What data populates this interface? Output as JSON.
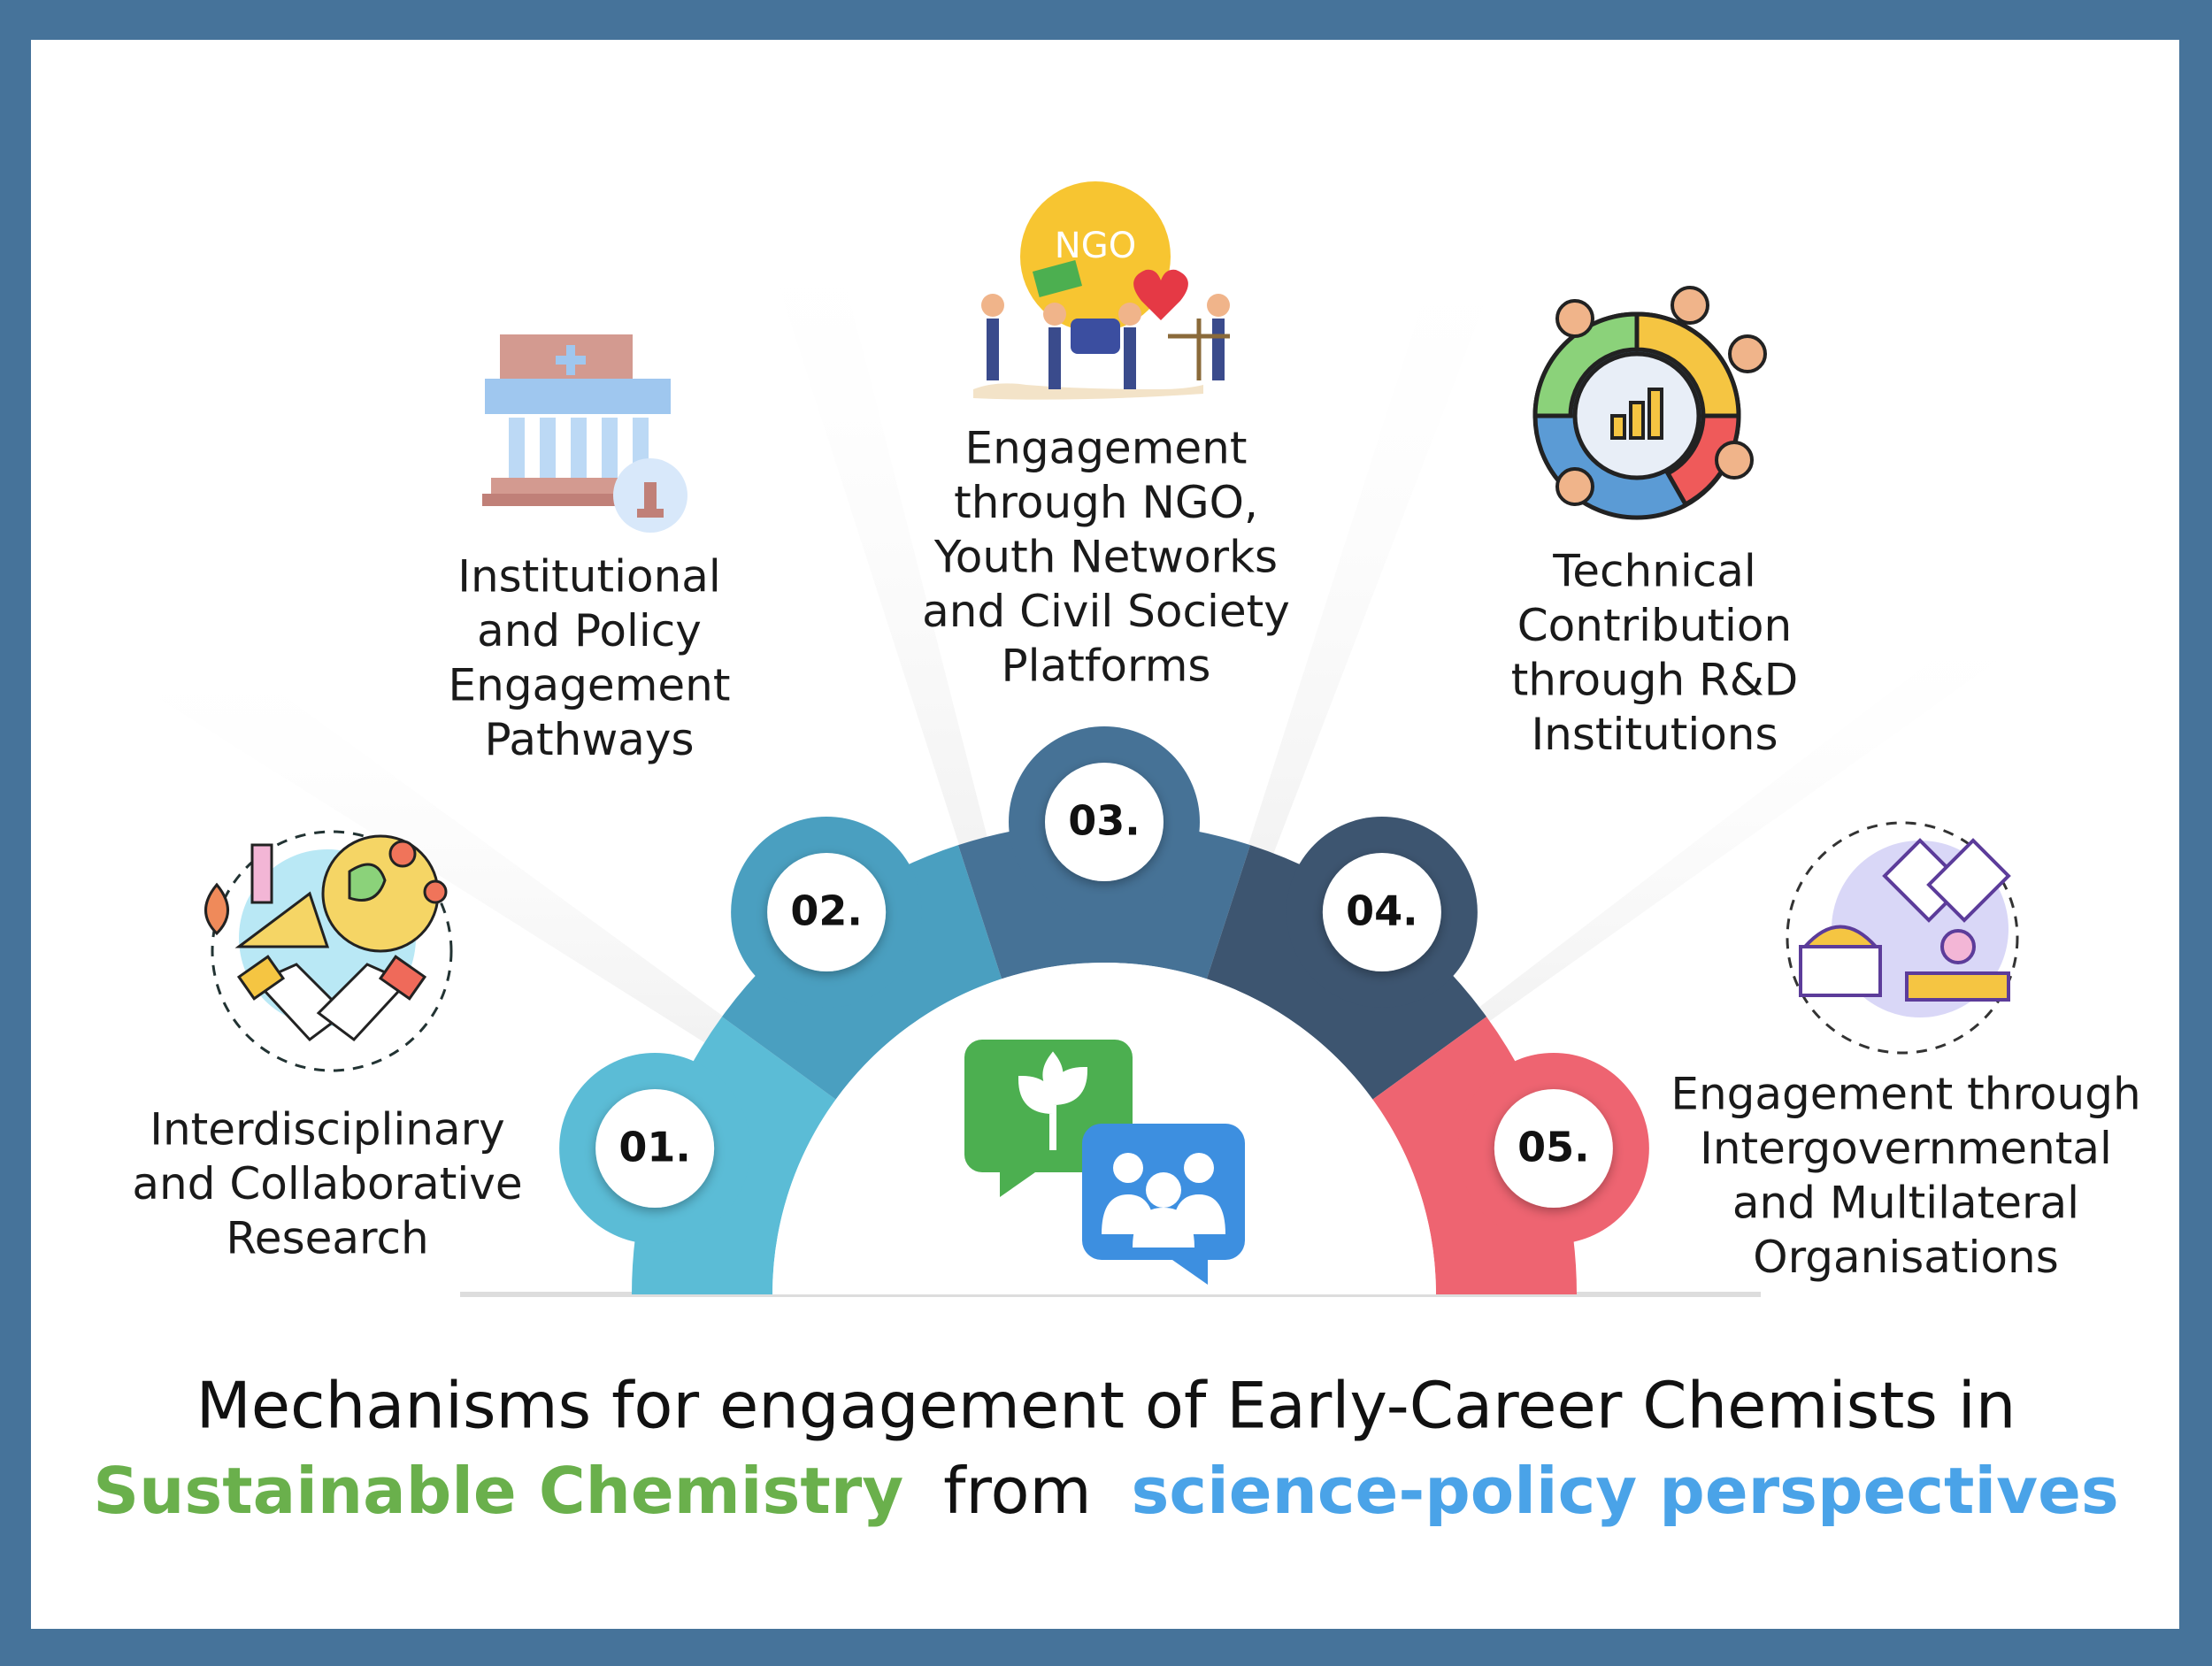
{
  "items": [
    {
      "number": "01.",
      "label": [
        "Interdisciplinary",
        "and Collaborative",
        "Research"
      ]
    },
    {
      "number": "02.",
      "label": [
        "Institutional",
        "and Policy",
        "Engagement",
        "Pathways"
      ]
    },
    {
      "number": "03.",
      "label": [
        "Engagement",
        "through NGO,",
        "Youth Networks",
        "and Civil Society",
        "Platforms"
      ]
    },
    {
      "number": "04.",
      "label": [
        "Technical",
        "Contribution",
        "through R&D",
        "Institutions"
      ]
    },
    {
      "number": "05.",
      "label": [
        "Engagement through",
        "Intergovernmental",
        "and Multilateral",
        "Organisations"
      ]
    }
  ],
  "icon_text": "NGO",
  "title": {
    "line1": "Mechanisms for engagement of Early-Career Chemists in",
    "highlight1": "Sustainable Chemistry",
    "middle": "from",
    "highlight2": "science-policy perspectives"
  }
}
